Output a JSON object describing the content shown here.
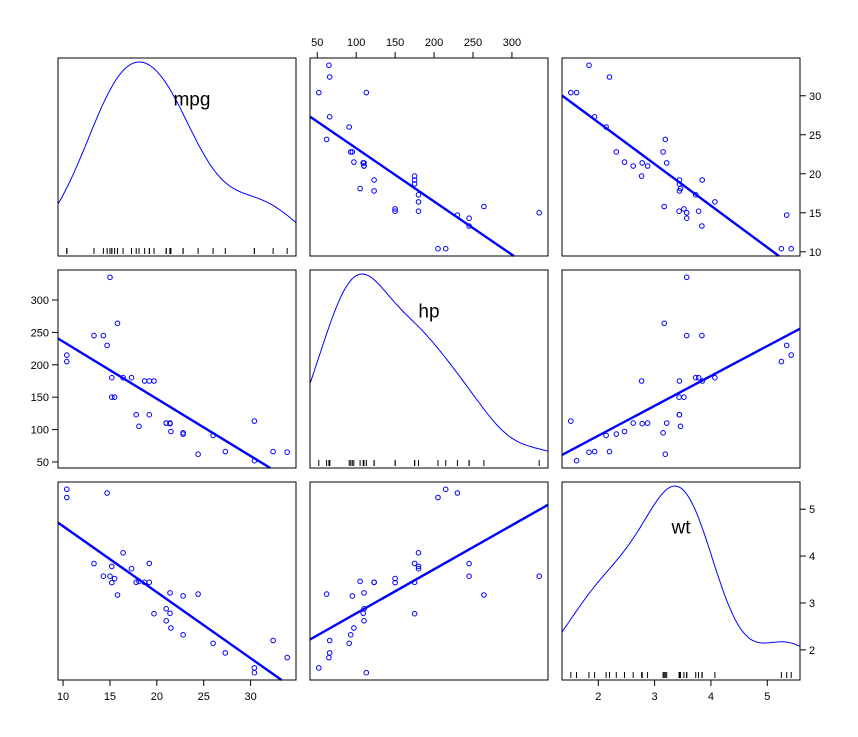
{
  "chart_data": {
    "type": "scatter",
    "subtype": "scatterplot-matrix",
    "variables": [
      {
        "name": "mpg",
        "range": [
          10.4,
          33.9
        ],
        "ticks": [
          10,
          15,
          20,
          25,
          30
        ]
      },
      {
        "name": "hp",
        "range": [
          52,
          335
        ],
        "ticks": [
          50,
          100,
          150,
          200,
          250,
          300
        ]
      },
      {
        "name": "wt",
        "range": [
          1.513,
          5.424
        ],
        "ticks": [
          2,
          3,
          4,
          5
        ]
      }
    ],
    "observations": [
      {
        "mpg": 21.0,
        "hp": 110,
        "wt": 2.62
      },
      {
        "mpg": 21.0,
        "hp": 110,
        "wt": 2.875
      },
      {
        "mpg": 22.8,
        "hp": 93,
        "wt": 2.32
      },
      {
        "mpg": 21.4,
        "hp": 110,
        "wt": 3.215
      },
      {
        "mpg": 18.7,
        "hp": 175,
        "wt": 3.44
      },
      {
        "mpg": 18.1,
        "hp": 105,
        "wt": 3.46
      },
      {
        "mpg": 14.3,
        "hp": 245,
        "wt": 3.57
      },
      {
        "mpg": 24.4,
        "hp": 62,
        "wt": 3.19
      },
      {
        "mpg": 22.8,
        "hp": 95,
        "wt": 3.15
      },
      {
        "mpg": 19.2,
        "hp": 123,
        "wt": 3.44
      },
      {
        "mpg": 17.8,
        "hp": 123,
        "wt": 3.44
      },
      {
        "mpg": 16.4,
        "hp": 180,
        "wt": 4.07
      },
      {
        "mpg": 17.3,
        "hp": 180,
        "wt": 3.73
      },
      {
        "mpg": 15.2,
        "hp": 180,
        "wt": 3.78
      },
      {
        "mpg": 10.4,
        "hp": 205,
        "wt": 5.25
      },
      {
        "mpg": 10.4,
        "hp": 215,
        "wt": 5.424
      },
      {
        "mpg": 14.7,
        "hp": 230,
        "wt": 5.345
      },
      {
        "mpg": 32.4,
        "hp": 66,
        "wt": 2.2
      },
      {
        "mpg": 30.4,
        "hp": 52,
        "wt": 1.615
      },
      {
        "mpg": 33.9,
        "hp": 65,
        "wt": 1.835
      },
      {
        "mpg": 21.5,
        "hp": 97,
        "wt": 2.465
      },
      {
        "mpg": 15.5,
        "hp": 150,
        "wt": 3.52
      },
      {
        "mpg": 15.2,
        "hp": 150,
        "wt": 3.435
      },
      {
        "mpg": 13.3,
        "hp": 245,
        "wt": 3.84
      },
      {
        "mpg": 19.2,
        "hp": 175,
        "wt": 3.845
      },
      {
        "mpg": 27.3,
        "hp": 66,
        "wt": 1.935
      },
      {
        "mpg": 26.0,
        "hp": 91,
        "wt": 2.14
      },
      {
        "mpg": 30.4,
        "hp": 113,
        "wt": 1.513
      },
      {
        "mpg": 15.8,
        "hp": 264,
        "wt": 3.17
      },
      {
        "mpg": 19.7,
        "hp": 175,
        "wt": 2.77
      },
      {
        "mpg": 15.0,
        "hp": 335,
        "wt": 3.57
      },
      {
        "mpg": 21.4,
        "hp": 109,
        "wt": 2.78
      }
    ],
    "grid": false,
    "legend": "none",
    "colors": {
      "points": "#0000ff",
      "lines": "#0000ff",
      "axes": "#000000"
    }
  }
}
